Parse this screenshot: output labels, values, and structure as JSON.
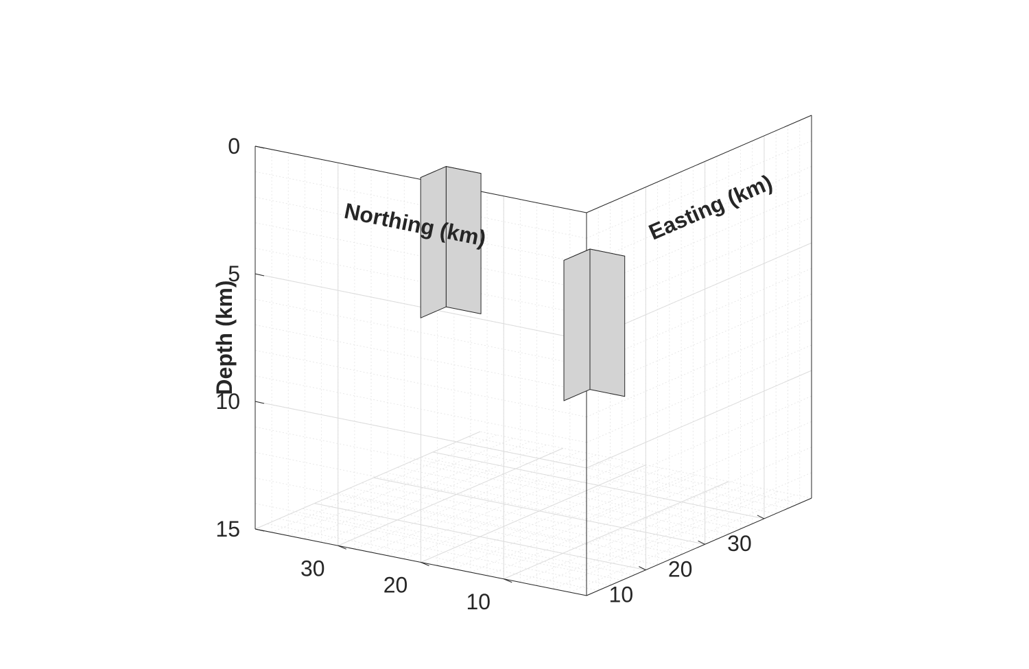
{
  "chart_data": {
    "type": "3d-box",
    "title": "",
    "xlabel": "Easting (km)",
    "ylabel": "Northing (km)",
    "zlabel": "Depth (km)",
    "xlim": [
      0,
      38
    ],
    "ylim": [
      0,
      40
    ],
    "zlim": [
      0,
      15
    ],
    "z_reversed": true,
    "grid": true,
    "minor_grid": true,
    "xticks": [
      10,
      20,
      30
    ],
    "yticks": [
      10,
      20,
      30
    ],
    "zticks": [
      0,
      5,
      10,
      15
    ],
    "xtick_labels": [
      "10",
      "20",
      "30"
    ],
    "ytick_labels": [
      "10",
      "20",
      "30"
    ],
    "ztick_labels": [
      "0",
      "5",
      "10",
      "15"
    ],
    "boxes": [
      {
        "x": [
          14.1,
          18.4
        ],
        "y": [
          25.9,
          30.1
        ],
        "z": [
          2.0,
          7.5
        ],
        "color": "#d3d3d3"
      },
      {
        "x": [
          20.1,
          24.5
        ],
        "y": [
          12.9,
          17.1
        ],
        "z": [
          5.0,
          10.5
        ],
        "color": "#d3d3d3"
      }
    ],
    "edge_color": "#262626"
  }
}
